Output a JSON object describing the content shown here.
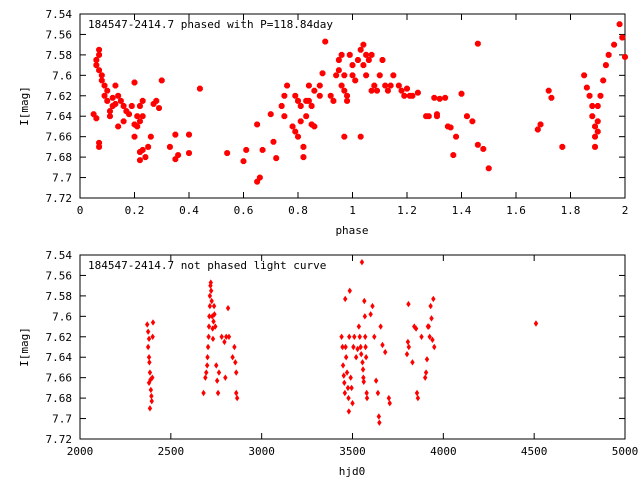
{
  "chart_data": [
    {
      "type": "scatter",
      "title": "184547-2414.7 phased with P=118.84day",
      "xlabel": "phase",
      "ylabel": "I[mag]",
      "xlim": [
        0,
        2
      ],
      "ylim": [
        7.54,
        7.72
      ],
      "y_inverted": true,
      "grid": false,
      "legend": "none",
      "color": "#ff0000",
      "x_ticks": [
        "0",
        "0.2",
        "0.4",
        "0.6",
        "0.8",
        "1",
        "1.2",
        "1.4",
        "1.6",
        "1.8",
        "2"
      ],
      "y_ticks": [
        "7.54",
        "7.56",
        "7.58",
        "7.6",
        "7.62",
        "7.64",
        "7.66",
        "7.68",
        "7.7",
        "7.72"
      ],
      "points": [
        [
          0.05,
          7.638
        ],
        [
          0.06,
          7.642
        ],
        [
          0.06,
          7.59
        ],
        [
          0.06,
          7.585
        ],
        [
          0.07,
          7.575
        ],
        [
          0.07,
          7.58
        ],
        [
          0.07,
          7.595
        ],
        [
          0.08,
          7.6
        ],
        [
          0.08,
          7.605
        ],
        [
          0.09,
          7.61
        ],
        [
          0.09,
          7.62
        ],
        [
          0.1,
          7.615
        ],
        [
          0.1,
          7.625
        ],
        [
          0.11,
          7.635
        ],
        [
          0.11,
          7.64
        ],
        [
          0.12,
          7.63
        ],
        [
          0.12,
          7.622
        ],
        [
          0.13,
          7.628
        ],
        [
          0.13,
          7.61
        ],
        [
          0.14,
          7.62
        ],
        [
          0.14,
          7.65
        ],
        [
          0.15,
          7.625
        ],
        [
          0.16,
          7.63
        ],
        [
          0.16,
          7.645
        ],
        [
          0.17,
          7.635
        ],
        [
          0.18,
          7.638
        ],
        [
          0.19,
          7.63
        ],
        [
          0.2,
          7.648
        ],
        [
          0.2,
          7.66
        ],
        [
          0.21,
          7.65
        ],
        [
          0.21,
          7.64
        ],
        [
          0.22,
          7.645
        ],
        [
          0.22,
          7.63
        ],
        [
          0.23,
          7.625
        ],
        [
          0.23,
          7.64
        ],
        [
          0.22,
          7.675
        ],
        [
          0.22,
          7.683
        ],
        [
          0.23,
          7.673
        ],
        [
          0.24,
          7.68
        ],
        [
          0.25,
          7.67
        ],
        [
          0.26,
          7.66
        ],
        [
          0.27,
          7.628
        ],
        [
          0.28,
          7.625
        ],
        [
          0.29,
          7.632
        ],
        [
          0.3,
          7.605
        ],
        [
          0.2,
          7.607
        ],
        [
          0.07,
          7.67
        ],
        [
          0.07,
          7.666
        ],
        [
          0.33,
          7.67
        ],
        [
          0.35,
          7.682
        ],
        [
          0.36,
          7.678
        ],
        [
          0.35,
          7.658
        ],
        [
          0.4,
          7.658
        ],
        [
          0.4,
          7.676
        ],
        [
          0.44,
          7.613
        ],
        [
          0.54,
          7.676
        ],
        [
          0.6,
          7.684
        ],
        [
          0.61,
          7.673
        ],
        [
          0.65,
          7.704
        ],
        [
          0.66,
          7.7
        ],
        [
          0.67,
          7.673
        ],
        [
          0.65,
          7.648
        ],
        [
          0.7,
          7.638
        ],
        [
          0.71,
          7.665
        ],
        [
          0.72,
          7.681
        ],
        [
          0.74,
          7.63
        ],
        [
          0.75,
          7.62
        ],
        [
          0.75,
          7.64
        ],
        [
          0.76,
          7.61
        ],
        [
          0.78,
          7.65
        ],
        [
          0.79,
          7.655
        ],
        [
          0.79,
          7.62
        ],
        [
          0.8,
          7.625
        ],
        [
          0.8,
          7.66
        ],
        [
          0.81,
          7.63
        ],
        [
          0.81,
          7.645
        ],
        [
          0.82,
          7.67
        ],
        [
          0.82,
          7.68
        ],
        [
          0.83,
          7.64
        ],
        [
          0.83,
          7.625
        ],
        [
          0.84,
          7.61
        ],
        [
          0.84,
          7.625
        ],
        [
          0.85,
          7.63
        ],
        [
          0.85,
          7.648
        ],
        [
          0.86,
          7.615
        ],
        [
          0.86,
          7.65
        ],
        [
          0.88,
          7.61
        ],
        [
          0.88,
          7.62
        ],
        [
          0.89,
          7.598
        ],
        [
          0.9,
          7.567
        ],
        [
          0.92,
          7.62
        ],
        [
          0.93,
          7.625
        ],
        [
          0.94,
          7.6
        ],
        [
          0.95,
          7.595
        ],
        [
          0.95,
          7.585
        ],
        [
          0.96,
          7.58
        ],
        [
          0.96,
          7.61
        ],
        [
          0.97,
          7.6
        ],
        [
          0.97,
          7.615
        ],
        [
          0.98,
          7.62
        ],
        [
          0.98,
          7.625
        ],
        [
          0.99,
          7.58
        ],
        [
          1.0,
          7.59
        ],
        [
          1.0,
          7.6
        ],
        [
          1.01,
          7.605
        ],
        [
          1.02,
          7.585
        ],
        [
          1.03,
          7.575
        ],
        [
          1.04,
          7.57
        ],
        [
          1.04,
          7.59
        ],
        [
          1.05,
          7.58
        ],
        [
          1.05,
          7.6
        ],
        [
          1.06,
          7.585
        ],
        [
          1.07,
          7.58
        ],
        [
          1.07,
          7.615
        ],
        [
          1.08,
          7.61
        ],
        [
          1.09,
          7.615
        ],
        [
          1.1,
          7.6
        ],
        [
          1.11,
          7.585
        ],
        [
          1.12,
          7.61
        ],
        [
          1.13,
          7.615
        ],
        [
          1.14,
          7.61
        ],
        [
          1.15,
          7.6
        ],
        [
          1.17,
          7.61
        ],
        [
          1.18,
          7.615
        ],
        [
          1.19,
          7.62
        ],
        [
          1.2,
          7.613
        ],
        [
          1.21,
          7.62
        ],
        [
          1.22,
          7.62
        ],
        [
          1.24,
          7.617
        ],
        [
          1.27,
          7.64
        ],
        [
          1.28,
          7.64
        ],
        [
          1.3,
          7.622
        ],
        [
          1.31,
          7.638
        ],
        [
          1.31,
          7.64
        ],
        [
          1.32,
          7.623
        ],
        [
          1.34,
          7.622
        ],
        [
          1.35,
          7.65
        ],
        [
          1.36,
          7.651
        ],
        [
          1.37,
          7.678
        ],
        [
          1.38,
          7.66
        ],
        [
          1.4,
          7.618
        ],
        [
          1.42,
          7.64
        ],
        [
          1.44,
          7.645
        ],
        [
          1.46,
          7.668
        ],
        [
          1.48,
          7.672
        ],
        [
          1.5,
          7.691
        ],
        [
          0.97,
          7.66
        ],
        [
          1.03,
          7.66
        ],
        [
          1.46,
          7.569
        ],
        [
          1.68,
          7.653
        ],
        [
          1.69,
          7.648
        ],
        [
          1.72,
          7.615
        ],
        [
          1.73,
          7.622
        ],
        [
          1.77,
          7.67
        ],
        [
          1.85,
          7.6
        ],
        [
          1.86,
          7.612
        ],
        [
          1.87,
          7.62
        ],
        [
          1.88,
          7.63
        ],
        [
          1.88,
          7.64
        ],
        [
          1.89,
          7.65
        ],
        [
          1.89,
          7.66
        ],
        [
          1.89,
          7.67
        ],
        [
          1.9,
          7.63
        ],
        [
          1.9,
          7.645
        ],
        [
          1.9,
          7.655
        ],
        [
          1.91,
          7.62
        ],
        [
          1.92,
          7.605
        ],
        [
          1.93,
          7.59
        ],
        [
          1.94,
          7.58
        ],
        [
          1.96,
          7.57
        ],
        [
          1.98,
          7.55
        ],
        [
          1.99,
          7.563
        ],
        [
          2.0,
          7.582
        ]
      ]
    },
    {
      "type": "scatter",
      "title": "184547-2414.7 not phased light curve",
      "xlabel": "hjd0",
      "ylabel": "I[mag]",
      "xlim": [
        2000,
        5000
      ],
      "ylim": [
        7.54,
        7.72
      ],
      "y_inverted": true,
      "grid": false,
      "legend": "none",
      "color": "#ff0000",
      "x_ticks": [
        "2000",
        "2500",
        "3000",
        "3500",
        "4000",
        "4500",
        "5000"
      ],
      "y_ticks": [
        "7.54",
        "7.56",
        "7.58",
        "7.6",
        "7.62",
        "7.64",
        "7.66",
        "7.68",
        "7.7",
        "7.72"
      ],
      "points": [
        [
          2370,
          7.608
        ],
        [
          2375,
          7.615
        ],
        [
          2375,
          7.63
        ],
        [
          2380,
          7.64
        ],
        [
          2382,
          7.645
        ],
        [
          2385,
          7.655
        ],
        [
          2388,
          7.662
        ],
        [
          2390,
          7.672
        ],
        [
          2393,
          7.678
        ],
        [
          2395,
          7.683
        ],
        [
          2398,
          7.66
        ],
        [
          2400,
          7.62
        ],
        [
          2402,
          7.606
        ],
        [
          2380,
          7.665
        ],
        [
          2385,
          7.69
        ],
        [
          2380,
          7.622
        ],
        [
          2680,
          7.675
        ],
        [
          2690,
          7.66
        ],
        [
          2695,
          7.655
        ],
        [
          2700,
          7.648
        ],
        [
          2702,
          7.64
        ],
        [
          2705,
          7.63
        ],
        [
          2708,
          7.62
        ],
        [
          2710,
          7.61
        ],
        [
          2712,
          7.6
        ],
        [
          2715,
          7.59
        ],
        [
          2715,
          7.58
        ],
        [
          2718,
          7.57
        ],
        [
          2720,
          7.567
        ],
        [
          2722,
          7.575
        ],
        [
          2725,
          7.585
        ],
        [
          2728,
          7.6
        ],
        [
          2730,
          7.612
        ],
        [
          2732,
          7.622
        ],
        [
          2735,
          7.605
        ],
        [
          2738,
          7.59
        ],
        [
          2740,
          7.598
        ],
        [
          2745,
          7.61
        ],
        [
          2750,
          7.648
        ],
        [
          2755,
          7.663
        ],
        [
          2760,
          7.675
        ],
        [
          2765,
          7.655
        ],
        [
          2780,
          7.62
        ],
        [
          2795,
          7.625
        ],
        [
          2800,
          7.66
        ],
        [
          2805,
          7.62
        ],
        [
          2815,
          7.592
        ],
        [
          2820,
          7.62
        ],
        [
          2840,
          7.64
        ],
        [
          2850,
          7.63
        ],
        [
          2855,
          7.645
        ],
        [
          2860,
          7.655
        ],
        [
          2860,
          7.675
        ],
        [
          2865,
          7.68
        ],
        [
          3440,
          7.62
        ],
        [
          3445,
          7.63
        ],
        [
          3448,
          7.648
        ],
        [
          3452,
          7.658
        ],
        [
          3455,
          7.665
        ],
        [
          3458,
          7.675
        ],
        [
          3460,
          7.583
        ],
        [
          3462,
          7.63
        ],
        [
          3465,
          7.64
        ],
        [
          3470,
          7.655
        ],
        [
          3475,
          7.67
        ],
        [
          3478,
          7.68
        ],
        [
          3480,
          7.693
        ],
        [
          3482,
          7.62
        ],
        [
          3485,
          7.575
        ],
        [
          3490,
          7.66
        ],
        [
          3495,
          7.67
        ],
        [
          3500,
          7.685
        ],
        [
          3505,
          7.63
        ],
        [
          3510,
          7.62
        ],
        [
          3520,
          7.64
        ],
        [
          3528,
          7.632
        ],
        [
          3535,
          7.61
        ],
        [
          3540,
          7.62
        ],
        [
          3545,
          7.63
        ],
        [
          3548,
          7.637
        ],
        [
          3552,
          7.547
        ],
        [
          3555,
          7.645
        ],
        [
          3558,
          7.652
        ],
        [
          3560,
          7.66
        ],
        [
          3562,
          7.664
        ],
        [
          3565,
          7.585
        ],
        [
          3568,
          7.6
        ],
        [
          3570,
          7.62
        ],
        [
          3572,
          7.63
        ],
        [
          3575,
          7.64
        ],
        [
          3578,
          7.675
        ],
        [
          3580,
          7.68
        ],
        [
          3600,
          7.598
        ],
        [
          3610,
          7.59
        ],
        [
          3620,
          7.62
        ],
        [
          3630,
          7.663
        ],
        [
          3640,
          7.675
        ],
        [
          3645,
          7.698
        ],
        [
          3648,
          7.704
        ],
        [
          3655,
          7.61
        ],
        [
          3665,
          7.628
        ],
        [
          3680,
          7.635
        ],
        [
          3700,
          7.68
        ],
        [
          3705,
          7.685
        ],
        [
          3800,
          7.637
        ],
        [
          3805,
          7.625
        ],
        [
          3808,
          7.588
        ],
        [
          3810,
          7.63
        ],
        [
          3830,
          7.645
        ],
        [
          3840,
          7.61
        ],
        [
          3850,
          7.612
        ],
        [
          3855,
          7.675
        ],
        [
          3860,
          7.68
        ],
        [
          3880,
          7.62
        ],
        [
          3900,
          7.66
        ],
        [
          3905,
          7.655
        ],
        [
          3910,
          7.642
        ],
        [
          3915,
          7.61
        ],
        [
          3920,
          7.61
        ],
        [
          3925,
          7.62
        ],
        [
          3930,
          7.59
        ],
        [
          3935,
          7.602
        ],
        [
          3940,
          7.623
        ],
        [
          3945,
          7.583
        ],
        [
          3950,
          7.63
        ],
        [
          4510,
          7.607
        ]
      ]
    }
  ]
}
